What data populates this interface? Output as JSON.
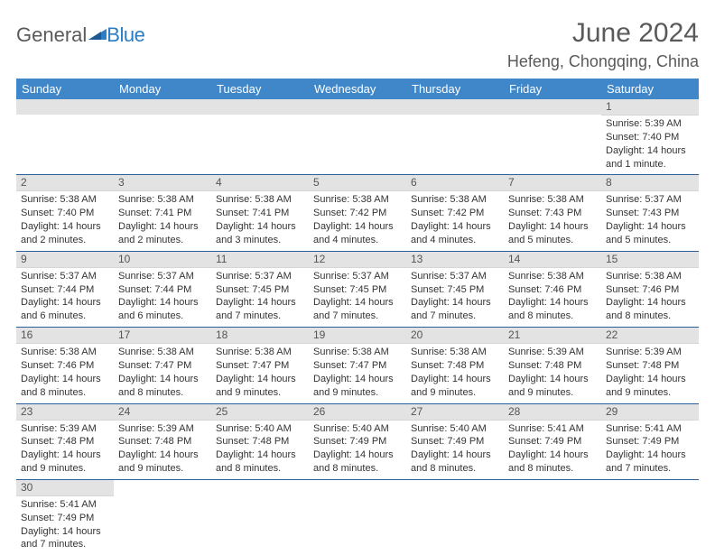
{
  "logo": {
    "general": "General",
    "blue": "Blue"
  },
  "title": "June 2024",
  "location": "Hefeng, Chongqing, China",
  "colors": {
    "header_bg": "#3f87c8",
    "header_fg": "#ffffff",
    "daynum_bg": "#e3e3e3",
    "row_divider": "#2c5e9a",
    "text": "#333333",
    "title_color": "#5a5a5a"
  },
  "weekdays": [
    "Sunday",
    "Monday",
    "Tuesday",
    "Wednesday",
    "Thursday",
    "Friday",
    "Saturday"
  ],
  "weeks": [
    [
      null,
      null,
      null,
      null,
      null,
      null,
      {
        "n": "1",
        "sr": "Sunrise: 5:39 AM",
        "ss": "Sunset: 7:40 PM",
        "dl": "Daylight: 14 hours and 1 minute."
      }
    ],
    [
      {
        "n": "2",
        "sr": "Sunrise: 5:38 AM",
        "ss": "Sunset: 7:40 PM",
        "dl": "Daylight: 14 hours and 2 minutes."
      },
      {
        "n": "3",
        "sr": "Sunrise: 5:38 AM",
        "ss": "Sunset: 7:41 PM",
        "dl": "Daylight: 14 hours and 2 minutes."
      },
      {
        "n": "4",
        "sr": "Sunrise: 5:38 AM",
        "ss": "Sunset: 7:41 PM",
        "dl": "Daylight: 14 hours and 3 minutes."
      },
      {
        "n": "5",
        "sr": "Sunrise: 5:38 AM",
        "ss": "Sunset: 7:42 PM",
        "dl": "Daylight: 14 hours and 4 minutes."
      },
      {
        "n": "6",
        "sr": "Sunrise: 5:38 AM",
        "ss": "Sunset: 7:42 PM",
        "dl": "Daylight: 14 hours and 4 minutes."
      },
      {
        "n": "7",
        "sr": "Sunrise: 5:38 AM",
        "ss": "Sunset: 7:43 PM",
        "dl": "Daylight: 14 hours and 5 minutes."
      },
      {
        "n": "8",
        "sr": "Sunrise: 5:37 AM",
        "ss": "Sunset: 7:43 PM",
        "dl": "Daylight: 14 hours and 5 minutes."
      }
    ],
    [
      {
        "n": "9",
        "sr": "Sunrise: 5:37 AM",
        "ss": "Sunset: 7:44 PM",
        "dl": "Daylight: 14 hours and 6 minutes."
      },
      {
        "n": "10",
        "sr": "Sunrise: 5:37 AM",
        "ss": "Sunset: 7:44 PM",
        "dl": "Daylight: 14 hours and 6 minutes."
      },
      {
        "n": "11",
        "sr": "Sunrise: 5:37 AM",
        "ss": "Sunset: 7:45 PM",
        "dl": "Daylight: 14 hours and 7 minutes."
      },
      {
        "n": "12",
        "sr": "Sunrise: 5:37 AM",
        "ss": "Sunset: 7:45 PM",
        "dl": "Daylight: 14 hours and 7 minutes."
      },
      {
        "n": "13",
        "sr": "Sunrise: 5:37 AM",
        "ss": "Sunset: 7:45 PM",
        "dl": "Daylight: 14 hours and 7 minutes."
      },
      {
        "n": "14",
        "sr": "Sunrise: 5:38 AM",
        "ss": "Sunset: 7:46 PM",
        "dl": "Daylight: 14 hours and 8 minutes."
      },
      {
        "n": "15",
        "sr": "Sunrise: 5:38 AM",
        "ss": "Sunset: 7:46 PM",
        "dl": "Daylight: 14 hours and 8 minutes."
      }
    ],
    [
      {
        "n": "16",
        "sr": "Sunrise: 5:38 AM",
        "ss": "Sunset: 7:46 PM",
        "dl": "Daylight: 14 hours and 8 minutes."
      },
      {
        "n": "17",
        "sr": "Sunrise: 5:38 AM",
        "ss": "Sunset: 7:47 PM",
        "dl": "Daylight: 14 hours and 8 minutes."
      },
      {
        "n": "18",
        "sr": "Sunrise: 5:38 AM",
        "ss": "Sunset: 7:47 PM",
        "dl": "Daylight: 14 hours and 9 minutes."
      },
      {
        "n": "19",
        "sr": "Sunrise: 5:38 AM",
        "ss": "Sunset: 7:47 PM",
        "dl": "Daylight: 14 hours and 9 minutes."
      },
      {
        "n": "20",
        "sr": "Sunrise: 5:38 AM",
        "ss": "Sunset: 7:48 PM",
        "dl": "Daylight: 14 hours and 9 minutes."
      },
      {
        "n": "21",
        "sr": "Sunrise: 5:39 AM",
        "ss": "Sunset: 7:48 PM",
        "dl": "Daylight: 14 hours and 9 minutes."
      },
      {
        "n": "22",
        "sr": "Sunrise: 5:39 AM",
        "ss": "Sunset: 7:48 PM",
        "dl": "Daylight: 14 hours and 9 minutes."
      }
    ],
    [
      {
        "n": "23",
        "sr": "Sunrise: 5:39 AM",
        "ss": "Sunset: 7:48 PM",
        "dl": "Daylight: 14 hours and 9 minutes."
      },
      {
        "n": "24",
        "sr": "Sunrise: 5:39 AM",
        "ss": "Sunset: 7:48 PM",
        "dl": "Daylight: 14 hours and 9 minutes."
      },
      {
        "n": "25",
        "sr": "Sunrise: 5:40 AM",
        "ss": "Sunset: 7:48 PM",
        "dl": "Daylight: 14 hours and 8 minutes."
      },
      {
        "n": "26",
        "sr": "Sunrise: 5:40 AM",
        "ss": "Sunset: 7:49 PM",
        "dl": "Daylight: 14 hours and 8 minutes."
      },
      {
        "n": "27",
        "sr": "Sunrise: 5:40 AM",
        "ss": "Sunset: 7:49 PM",
        "dl": "Daylight: 14 hours and 8 minutes."
      },
      {
        "n": "28",
        "sr": "Sunrise: 5:41 AM",
        "ss": "Sunset: 7:49 PM",
        "dl": "Daylight: 14 hours and 8 minutes."
      },
      {
        "n": "29",
        "sr": "Sunrise: 5:41 AM",
        "ss": "Sunset: 7:49 PM",
        "dl": "Daylight: 14 hours and 7 minutes."
      }
    ],
    [
      {
        "n": "30",
        "sr": "Sunrise: 5:41 AM",
        "ss": "Sunset: 7:49 PM",
        "dl": "Daylight: 14 hours and 7 minutes."
      },
      null,
      null,
      null,
      null,
      null,
      null
    ]
  ]
}
